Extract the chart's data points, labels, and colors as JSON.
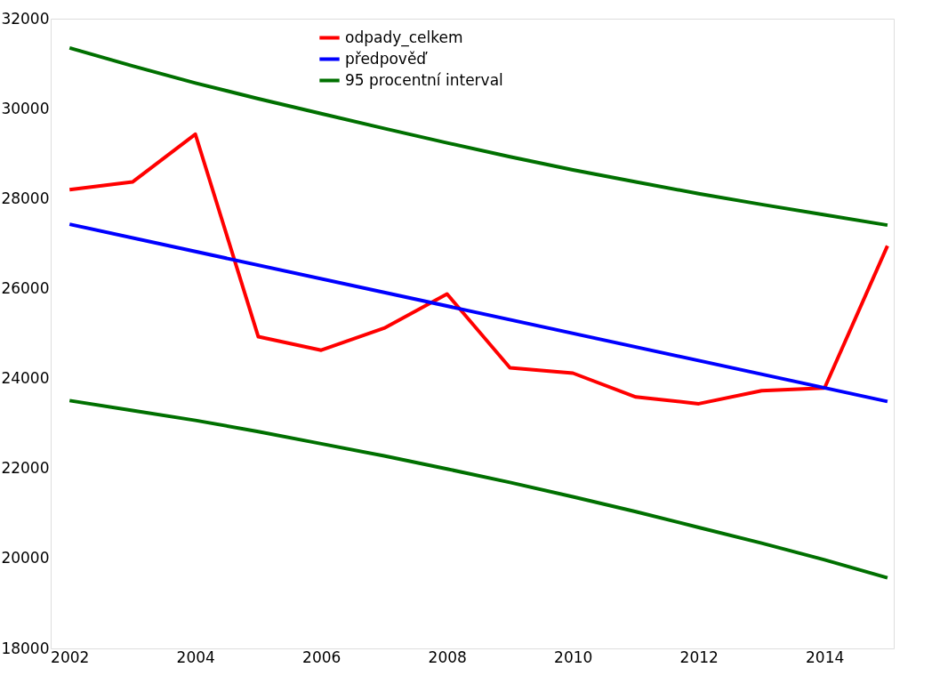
{
  "chart_data": {
    "type": "line",
    "x": [
      2002,
      2003,
      2004,
      2005,
      2006,
      2007,
      2008,
      2009,
      2010,
      2011,
      2012,
      2013,
      2014,
      2015
    ],
    "series": [
      {
        "name": "odpady_celkem",
        "color": "#ff0000",
        "values": [
          28200,
          28370,
          29430,
          24930,
          24630,
          25120,
          25880,
          24240,
          24120,
          23590,
          23440,
          23730,
          23790,
          26950
        ]
      },
      {
        "name": "předpověď",
        "color": "#0000ff",
        "x": [
          2002,
          2015
        ],
        "values": [
          27430,
          23490
        ]
      },
      {
        "name": "95 procentní interval",
        "color": "#007000",
        "values": [
          31350,
          30950,
          30570,
          30220,
          29890,
          29560,
          29240,
          28930,
          28640,
          28370,
          28110,
          27870,
          27640,
          27410
        ]
      },
      {
        "color": "#007000",
        "values": [
          23510,
          23290,
          23070,
          22820,
          22550,
          22280,
          21990,
          21690,
          21370,
          21040,
          20690,
          20340,
          19970,
          19570
        ]
      }
    ],
    "xlim": [
      2001.7,
      2015.1
    ],
    "xticks": [
      2002,
      2004,
      2006,
      2008,
      2010,
      2012,
      2014
    ],
    "ylim": [
      18000,
      32000
    ],
    "yticks": [
      18000,
      20000,
      22000,
      24000,
      26000,
      28000,
      30000,
      32000
    ],
    "grid": false,
    "legend": "top left",
    "line_style": "solid"
  }
}
